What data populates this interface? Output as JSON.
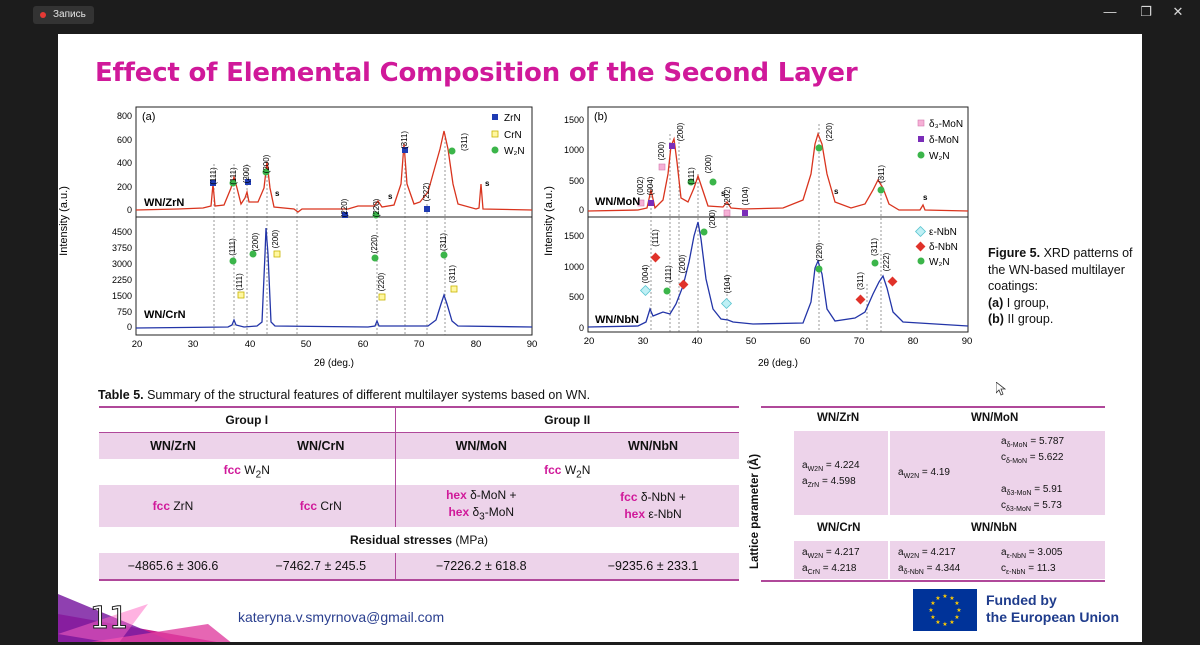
{
  "chrome": {
    "record_label": "Запись",
    "minimize": "—",
    "restore": "❐",
    "close": "✕"
  },
  "slide": {
    "title": "Effect of Elemental Composition of the Second Layer",
    "caption": {
      "fig": "Figure 5.",
      "text": " XRD patterns of the WN-based multilayer coatings:",
      "a_key": "(a)",
      "a_text": " I group,",
      "b_key": "(b)",
      "b_text": " II group."
    },
    "table_caption": {
      "key": "Table 5.",
      "text": " Summary of the structural features of different multilayer systems based on WN."
    },
    "table5": {
      "group1": "Group I",
      "group2": "Group II",
      "headers": [
        "WN/ZrN",
        "WN/CrN",
        "WN/MoN",
        "WN/NbN"
      ],
      "phase_row": {
        "g1_pre": "fcc",
        "g1_post": " W",
        "g1_sub": "2",
        "g1_end": "N",
        "g2_pre": "fcc",
        "g2_post": " W",
        "g2_sub": "2",
        "g2_end": "N"
      },
      "second_phase": {
        "zrn_pre": "fcc",
        "zrn": " ZrN",
        "crn_pre": "fcc",
        "crn": " CrN",
        "mon_l1_pre": "hex",
        "mon_l1": " δ-MoN +",
        "mon_l2_pre": "hex",
        "mon_l2": " δ",
        "mon_l2_sub": "3",
        "mon_l2_end": "-MoN",
        "nbn_l1_pre": "fcc",
        "nbn_l1": " δ-NbN +",
        "nbn_l2_pre": "hex",
        "nbn_l2": " ε-NbN"
      },
      "rs_label": "Residual stresses",
      "rs_unit": " (MPa)",
      "rs_values": [
        "−4865.6 ± 306.6",
        "−7462.7 ± 245.5",
        "−7226.2 ± 618.8",
        "−9235.6 ± 233.1"
      ]
    },
    "lattice": {
      "side_label": "Lattice parameter (Å)",
      "h_zrn": "WN/ZrN",
      "h_mon": "WN/MoN",
      "h_crn": "WN/CrN",
      "h_nbn": "WN/NbN",
      "zrn": {
        "l1": "a",
        "l1s": "W2N",
        "l1v": " = 4.224",
        "l2": "a",
        "l2s": "ZrN",
        "l2v": " = 4.598"
      },
      "mon_left": {
        "l1": "a",
        "l1s": "W2N",
        "l1v": " = 4.19"
      },
      "mon_right": {
        "l1": "a",
        "l1s": "δ-MoN",
        "l1v": " = 5.787",
        "l2": "c",
        "l2s": "δ-MoN",
        "l2v": " = 5.622",
        "l3": "a",
        "l3s": "δ3-MoN",
        "l3v": " = 5.91",
        "l4": "c",
        "l4s": "δ3-MoN",
        "l4v": " = 5.73"
      },
      "crn": {
        "l1": "a",
        "l1s": "W2N",
        "l1v": " = 4.217",
        "l2": "a",
        "l2s": "CrN",
        "l2v": " = 4.218"
      },
      "nbn_left": {
        "l1": "a",
        "l1s": "W2N",
        "l1v": " = 4.217",
        "l2": "a",
        "l2s": "δ-NbN",
        "l2v": " = 4.344"
      },
      "nbn_right": {
        "l1": "a",
        "l1s": "ε-NbN",
        "l1v": " = 3.005",
        "l2": "c",
        "l2s": "ε-NbN",
        "l2v": " = 11.3"
      }
    },
    "slide_number": "11",
    "email": "kateryna.v.smyrnova@gmail.com",
    "eu": {
      "line1": "Funded by",
      "line2": "the European Union"
    }
  },
  "figures": {
    "ylabel": "Intensity (a.u.)",
    "xlabel": "2θ (deg.)",
    "x_ticks": [
      "20",
      "30",
      "40",
      "50",
      "60",
      "70",
      "80",
      "90"
    ],
    "a": {
      "panel": "(a)",
      "top": {
        "sample": "WN/ZrN",
        "y_ticks": [
          "0",
          "200",
          "400",
          "600",
          "800"
        ]
      },
      "bottom": {
        "sample": "WN/CrN",
        "y_ticks": [
          "0",
          "750",
          "1500",
          "2250",
          "3000",
          "3750",
          "4500"
        ]
      },
      "legend": [
        "ZrN",
        "CrN",
        "W₂N"
      ],
      "top_labels": [
        "(111)",
        "(111)",
        "(200)",
        "(200)",
        "(220)",
        "(220)",
        "(311)",
        "(222)",
        "(311)"
      ],
      "bottom_labels": [
        "(111)",
        "(111)",
        "(200)",
        "(200)",
        "(220)",
        "(220)",
        "(311)",
        "(311)"
      ],
      "s": "s"
    },
    "b": {
      "panel": "(b)",
      "top": {
        "sample": "WN/MoN",
        "y_ticks": [
          "0",
          "500",
          "1000",
          "1500"
        ]
      },
      "bottom": {
        "sample": "WN/NbN",
        "y_ticks": [
          "0",
          "500",
          "1000",
          "1500"
        ]
      },
      "legend_top": [
        "δ₃-MoN",
        "δ-MoN",
        "W₂N"
      ],
      "legend_bottom": [
        "ε-NbN",
        "δ-NbN",
        "W₂N"
      ],
      "top_labels": [
        "(002)",
        "(004)",
        "(200)",
        "(200)",
        "(111)",
        "(200)",
        "(202)",
        "(104)",
        "(220)",
        "(311)"
      ],
      "bottom_labels": [
        "(004)",
        "(111)",
        "(111)",
        "(200)",
        "(200)",
        "(104)",
        "(220)",
        "(311)",
        "(311)",
        "(222)"
      ],
      "s": "s"
    }
  }
}
